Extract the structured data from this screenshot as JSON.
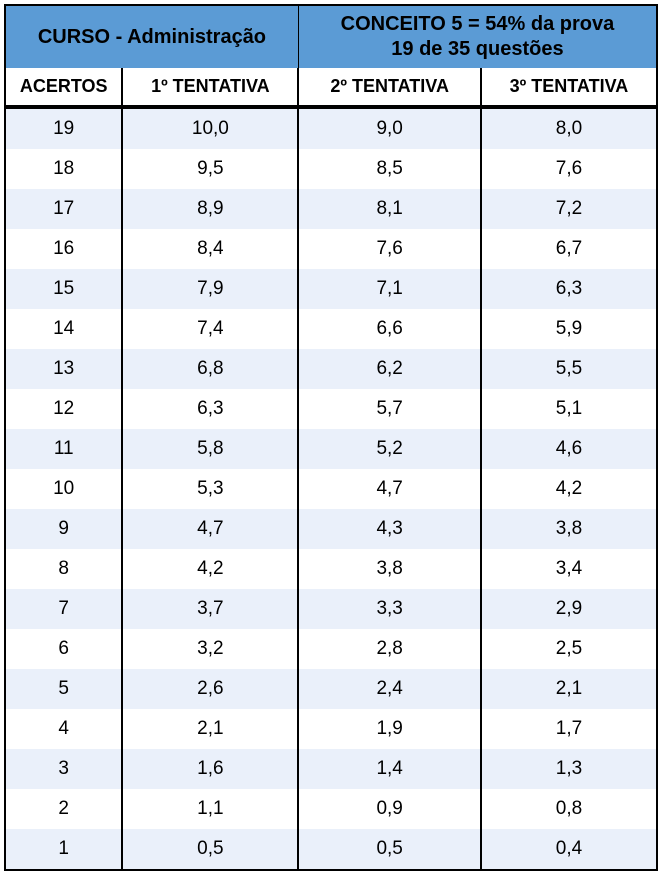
{
  "table": {
    "type": "table",
    "header_bg_color": "#5b9bd5",
    "row_alt_color": "#eaf0fa",
    "row_base_color": "#ffffff",
    "border_color": "#000000",
    "title_fontsize": 20,
    "subheader_fontsize": 18,
    "cell_fontsize": 19,
    "top_left_title": "CURSO - Administração",
    "top_right_title_line1": "CONCEITO 5 = 54% da prova",
    "top_right_title_line2": "19 de 35 questões",
    "columns": [
      "ACERTOS",
      "1º TENTATIVA",
      "2º TENTATIVA",
      "3º TENTATIVA"
    ],
    "column_widths_pct": [
      18,
      27,
      28,
      27
    ],
    "rows": [
      [
        "19",
        "10,0",
        "9,0",
        "8,0"
      ],
      [
        "18",
        "9,5",
        "8,5",
        "7,6"
      ],
      [
        "17",
        "8,9",
        "8,1",
        "7,2"
      ],
      [
        "16",
        "8,4",
        "7,6",
        "6,7"
      ],
      [
        "15",
        "7,9",
        "7,1",
        "6,3"
      ],
      [
        "14",
        "7,4",
        "6,6",
        "5,9"
      ],
      [
        "13",
        "6,8",
        "6,2",
        "5,5"
      ],
      [
        "12",
        "6,3",
        "5,7",
        "5,1"
      ],
      [
        "11",
        "5,8",
        "5,2",
        "4,6"
      ],
      [
        "10",
        "5,3",
        "4,7",
        "4,2"
      ],
      [
        "9",
        "4,7",
        "4,3",
        "3,8"
      ],
      [
        "8",
        "4,2",
        "3,8",
        "3,4"
      ],
      [
        "7",
        "3,7",
        "3,3",
        "2,9"
      ],
      [
        "6",
        "3,2",
        "2,8",
        "2,5"
      ],
      [
        "5",
        "2,6",
        "2,4",
        "2,1"
      ],
      [
        "4",
        "2,1",
        "1,9",
        "1,7"
      ],
      [
        "3",
        "1,6",
        "1,4",
        "1,3"
      ],
      [
        "2",
        "1,1",
        "0,9",
        "0,8"
      ],
      [
        "1",
        "0,5",
        "0,5",
        "0,4"
      ]
    ]
  }
}
